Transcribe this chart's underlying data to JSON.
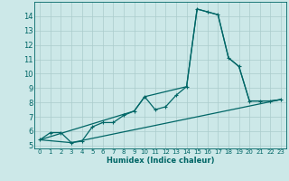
{
  "xlabel": "Humidex (Indice chaleur)",
  "bg_color": "#cce8e8",
  "grid_color": "#aacccc",
  "line_color": "#006666",
  "xlim": [
    -0.5,
    23.5
  ],
  "ylim": [
    4.8,
    15.0
  ],
  "yticks": [
    5,
    6,
    7,
    8,
    9,
    10,
    11,
    12,
    13,
    14
  ],
  "xticks": [
    0,
    1,
    2,
    3,
    4,
    5,
    6,
    7,
    8,
    9,
    10,
    11,
    12,
    13,
    14,
    15,
    16,
    17,
    18,
    19,
    20,
    21,
    22,
    23
  ],
  "series_main": {
    "x": [
      0,
      1,
      2,
      3,
      4,
      5,
      6,
      7,
      8,
      9,
      10,
      11,
      12,
      13,
      14,
      15,
      16,
      17,
      18,
      19,
      20,
      21,
      22,
      23
    ],
    "y": [
      5.4,
      5.9,
      5.9,
      5.2,
      5.3,
      6.3,
      6.6,
      6.6,
      7.1,
      7.4,
      8.4,
      7.5,
      7.7,
      8.5,
      9.1,
      14.5,
      14.3,
      14.1,
      11.1,
      10.5,
      8.1,
      8.1,
      8.1,
      8.2
    ]
  },
  "series_upper": {
    "x": [
      0,
      9,
      10,
      14,
      15,
      16,
      17,
      18,
      19,
      20,
      21,
      22,
      23
    ],
    "y": [
      5.4,
      7.4,
      8.4,
      9.1,
      14.5,
      14.3,
      14.1,
      11.1,
      10.5,
      8.1,
      8.1,
      8.1,
      8.2
    ]
  },
  "series_lower": {
    "x": [
      0,
      3,
      23
    ],
    "y": [
      5.4,
      5.2,
      8.2
    ]
  }
}
